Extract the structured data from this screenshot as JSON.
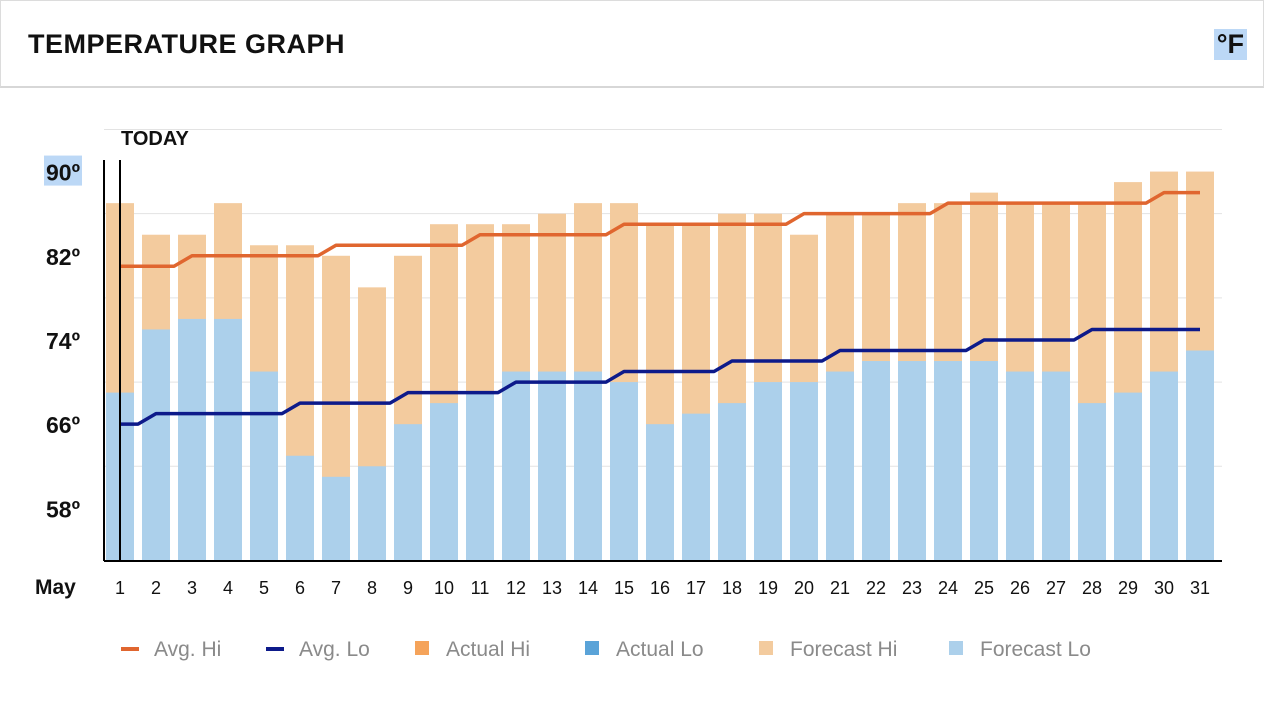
{
  "header": {
    "title": "TEMPERATURE GRAPH",
    "unit": "°F"
  },
  "today_label": "TODAY",
  "month_label": "May",
  "chart_data": {
    "type": "bar",
    "title": "TEMPERATURE GRAPH",
    "x": [
      1,
      2,
      3,
      4,
      5,
      6,
      7,
      8,
      9,
      10,
      11,
      12,
      13,
      14,
      15,
      16,
      17,
      18,
      19,
      20,
      21,
      22,
      23,
      24,
      25,
      26,
      27,
      28,
      29,
      30,
      31
    ],
    "x_labels": [
      "1",
      "2",
      "3",
      "4",
      "5",
      "6",
      "7",
      "8",
      "9",
      "10",
      "11",
      "12",
      "13",
      "14",
      "15",
      "16",
      "17",
      "18",
      "19",
      "20",
      "21",
      "22",
      "23",
      "24",
      "25",
      "26",
      "27",
      "28",
      "29",
      "30",
      "31"
    ],
    "y_ticks": [
      58,
      66,
      74,
      82,
      90
    ],
    "y_tick_labels": [
      "58º",
      "66º",
      "74º",
      "82º",
      "90º"
    ],
    "ylim": [
      53,
      93
    ],
    "today_index": 0,
    "series": [
      {
        "name": "Forecast Hi",
        "kind": "bar",
        "color": "#f3cb9e",
        "values": [
          87,
          84,
          84,
          87,
          83,
          83,
          82,
          79,
          82,
          85,
          85,
          85,
          86,
          87,
          87,
          85,
          85,
          86,
          86,
          84,
          86,
          86,
          87,
          87,
          88,
          87,
          87,
          87,
          89,
          90,
          90
        ]
      },
      {
        "name": "Forecast Lo",
        "kind": "bar",
        "color": "#acd0eb",
        "values": [
          69,
          75,
          76,
          76,
          71,
          63,
          61,
          62,
          66,
          68,
          69,
          71,
          71,
          71,
          70,
          66,
          67,
          68,
          70,
          70,
          71,
          72,
          72,
          72,
          72,
          71,
          71,
          68,
          69,
          71,
          73
        ]
      },
      {
        "name": "Avg. Hi",
        "kind": "line",
        "color": "#e0662f",
        "values": [
          81,
          81,
          82,
          82,
          82,
          82,
          83,
          83,
          83,
          83,
          84,
          84,
          84,
          84,
          85,
          85,
          85,
          85,
          85,
          86,
          86,
          86,
          86,
          87,
          87,
          87,
          87,
          87,
          87,
          88,
          88
        ]
      },
      {
        "name": "Avg. Lo",
        "kind": "line",
        "color": "#0d1a8a",
        "values": [
          66,
          67,
          67,
          67,
          67,
          68,
          68,
          68,
          69,
          69,
          69,
          70,
          70,
          70,
          71,
          71,
          71,
          72,
          72,
          72,
          73,
          73,
          73,
          73,
          74,
          74,
          74,
          75,
          75,
          75,
          75
        ]
      }
    ],
    "legend": [
      {
        "name": "Avg. Hi",
        "swatch": "line",
        "color": "#e0662f"
      },
      {
        "name": "Avg. Lo",
        "swatch": "line",
        "color": "#0d1a8a"
      },
      {
        "name": "Actual Hi",
        "swatch": "box",
        "color": "#f5a35a"
      },
      {
        "name": "Actual Lo",
        "swatch": "box",
        "color": "#5aa3d8"
      },
      {
        "name": "Forecast Hi",
        "swatch": "box",
        "color": "#f3cb9e"
      },
      {
        "name": "Forecast Lo",
        "swatch": "box",
        "color": "#acd0eb"
      }
    ],
    "legend_position": "bottom",
    "grid": true
  }
}
